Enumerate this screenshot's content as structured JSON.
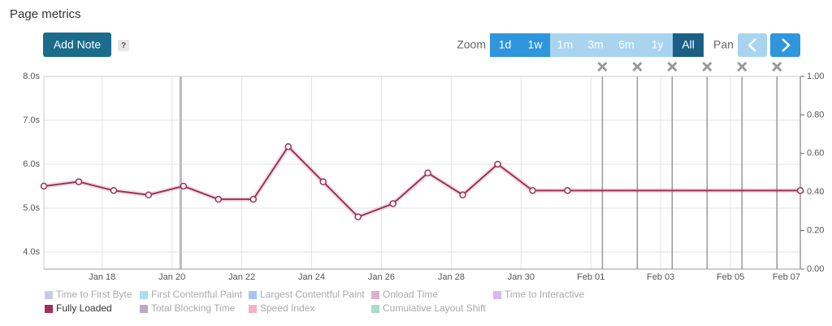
{
  "header": {
    "title": "Page metrics"
  },
  "toolbar": {
    "add_note": "Add Note",
    "help": "?",
    "zoom_label": "Zoom",
    "zoom_options": [
      "1d",
      "1w",
      "1m",
      "3m",
      "6m",
      "1y",
      "All"
    ],
    "pan_label": "Pan"
  },
  "chart_data": {
    "type": "line",
    "series": [
      {
        "name": "Fully Loaded",
        "color": "#a0305a",
        "x": [
          16.33,
          17.33,
          18.33,
          19.33,
          20.33,
          21.33,
          22.33,
          23.33,
          24.33,
          25.33,
          26.33,
          27.33,
          28.33,
          29.33,
          30.33,
          31.33,
          38
        ],
        "values": [
          5.5,
          5.6,
          5.4,
          5.3,
          5.5,
          5.2,
          5.2,
          6.4,
          5.6,
          4.8,
          5.1,
          5.8,
          5.3,
          6.0,
          5.4,
          5.4,
          5.4
        ]
      }
    ],
    "inactive_series": [
      {
        "name": "Time to First Byte",
        "color": "#c9c9e9"
      },
      {
        "name": "First Contentful Paint",
        "color": "#a9dff2"
      },
      {
        "name": "Largest Contentful Paint",
        "color": "#a9c5ef"
      },
      {
        "name": "Onload Time",
        "color": "#ddb1c9"
      },
      {
        "name": "Time to Interactive",
        "color": "#d9b9ed"
      },
      {
        "name": "Total Blocking Time",
        "color": "#b9a9c1"
      },
      {
        "name": "Speed Index",
        "color": "#f5b1c9"
      },
      {
        "name": "Cumulative Layout Shift",
        "color": "#a9ddc9"
      }
    ],
    "xlim": [
      16.33,
      38
    ],
    "xticks": [
      {
        "value": 18,
        "label": "Jan 18"
      },
      {
        "value": 20,
        "label": "Jan 20"
      },
      {
        "value": 22,
        "label": "Jan 22"
      },
      {
        "value": 24,
        "label": "Jan 24"
      },
      {
        "value": 26,
        "label": "Jan 26"
      },
      {
        "value": 28,
        "label": "Jan 28"
      },
      {
        "value": 30,
        "label": "Jan 30"
      },
      {
        "value": 32,
        "label": "Feb 01"
      },
      {
        "value": 34,
        "label": "Feb 03"
      },
      {
        "value": 36,
        "label": "Feb 05"
      },
      {
        "value": 38,
        "label": "Feb 07"
      }
    ],
    "ylim": [
      3.61,
      8
    ],
    "yticks": [
      {
        "value": 4,
        "label": "4.0s"
      },
      {
        "value": 5,
        "label": "5.0s"
      },
      {
        "value": 6,
        "label": "6.0s"
      },
      {
        "value": 7,
        "label": "7.0s"
      },
      {
        "value": 8,
        "label": "8.0s"
      }
    ],
    "y2lim": [
      0,
      1
    ],
    "y2ticks": [
      {
        "value": 0,
        "label": "0.00"
      },
      {
        "value": 0.2,
        "label": "0.20"
      },
      {
        "value": 0.4,
        "label": "0.40"
      },
      {
        "value": 0.6,
        "label": "0.60"
      },
      {
        "value": 0.8,
        "label": "0.80"
      },
      {
        "value": 1,
        "label": "1.00"
      }
    ],
    "grid": true,
    "marker_lines": [
      20.25
    ],
    "event_lines": [
      32.33,
      33.33,
      34.33,
      35.33,
      36.33,
      37.33
    ]
  }
}
